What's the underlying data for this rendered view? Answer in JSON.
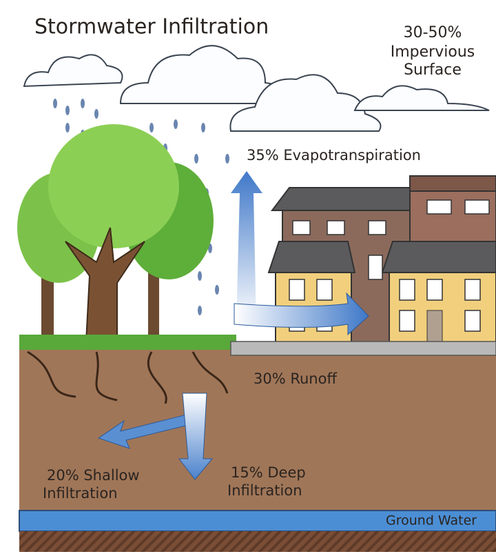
{
  "title": "Stormwater Infiltration",
  "surface": {
    "lines": [
      "30-50%",
      "Impervious",
      "Surface"
    ]
  },
  "labels": {
    "evapotranspiration": "35% Evapotranspiration",
    "runoff": "30% Runoff",
    "shallow_infiltration": [
      "20% Shallow",
      "Infiltration"
    ],
    "deep_infiltration": [
      "15% Deep",
      "Infiltration"
    ],
    "ground_water": "Ground Water"
  }
}
